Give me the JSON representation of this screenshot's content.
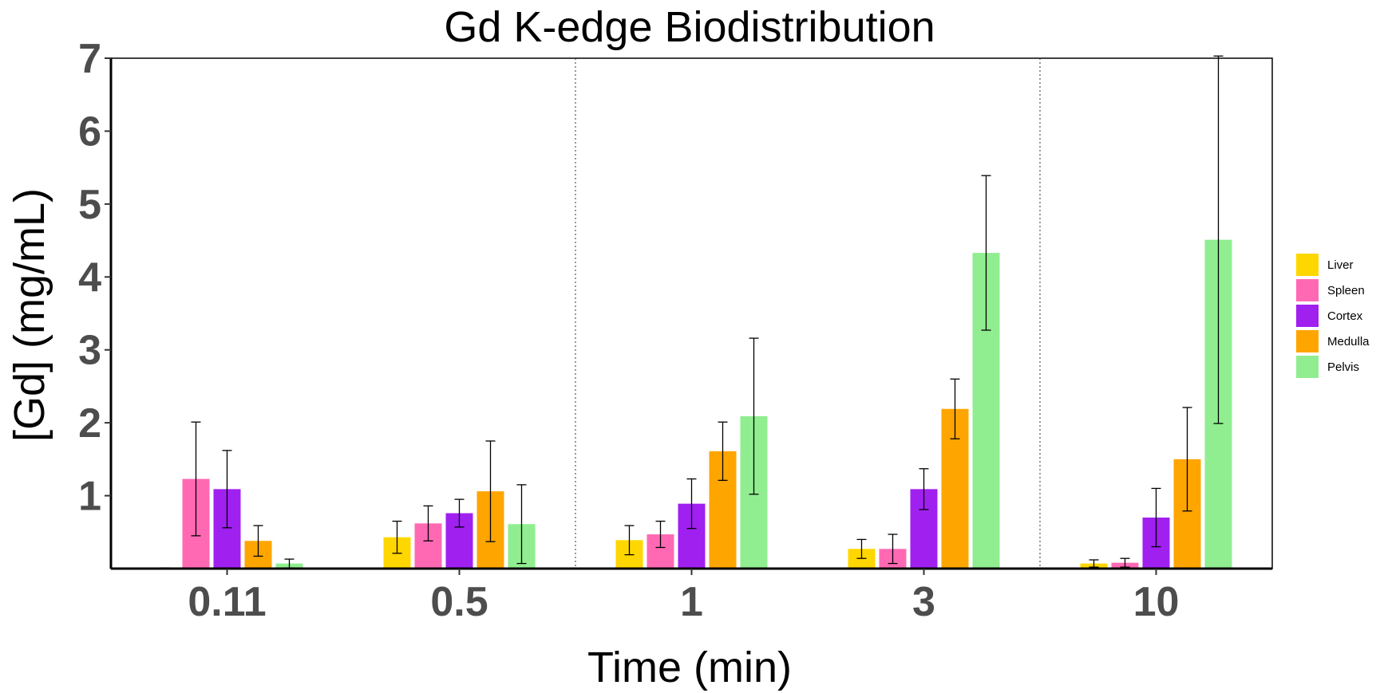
{
  "chart_data": {
    "type": "bar",
    "title": "Gd K-edge Biodistribution",
    "xlabel": "Time (min)",
    "ylabel": "[Gd] (mg/mL)",
    "categories": [
      "0.11",
      "0.5",
      "1",
      "3",
      "10"
    ],
    "ylim": [
      0,
      7
    ],
    "yticks": [
      1,
      2,
      3,
      4,
      5,
      6,
      7
    ],
    "grid": false,
    "legend_position": "right",
    "series": [
      {
        "name": "Liver",
        "color": "#FFD700",
        "values": [
          0.0,
          0.43,
          0.39,
          0.27,
          0.07
        ],
        "error": [
          0.01,
          0.22,
          0.2,
          0.13,
          0.05
        ]
      },
      {
        "name": "Spleen",
        "color": "#FF69B4",
        "values": [
          1.23,
          0.62,
          0.47,
          0.27,
          0.08
        ],
        "error": [
          0.78,
          0.24,
          0.18,
          0.2,
          0.06
        ]
      },
      {
        "name": "Cortex",
        "color": "#A020F0",
        "values": [
          1.09,
          0.76,
          0.89,
          1.09,
          0.7
        ],
        "error": [
          0.53,
          0.19,
          0.34,
          0.28,
          0.4
        ]
      },
      {
        "name": "Medulla",
        "color": "#FFA500",
        "values": [
          0.38,
          1.06,
          1.61,
          2.19,
          1.5
        ],
        "error": [
          0.21,
          0.69,
          0.4,
          0.41,
          0.71
        ]
      },
      {
        "name": "Pelvis",
        "color": "#90EE90",
        "values": [
          0.07,
          0.61,
          2.09,
          4.33,
          4.51
        ],
        "error": [
          0.06,
          0.54,
          1.07,
          1.06,
          2.52
        ]
      }
    ],
    "separators_after_category_index": [
      1,
      3
    ]
  }
}
